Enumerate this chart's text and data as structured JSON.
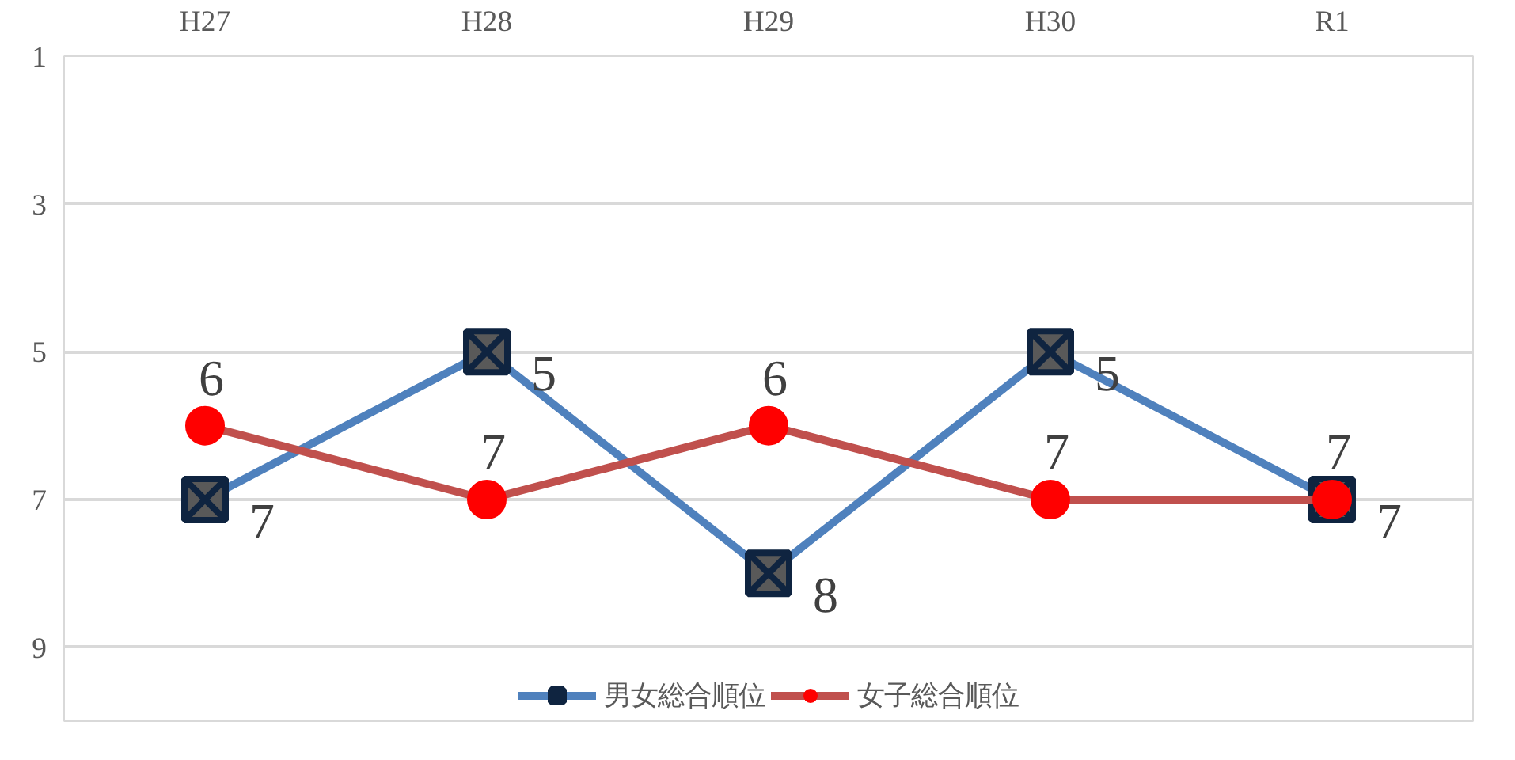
{
  "chart_data": {
    "type": "line",
    "categories": [
      "H27",
      "H28",
      "H29",
      "H30",
      "R1"
    ],
    "series": [
      {
        "name": "男女総合順位",
        "color": "#4f81bd",
        "marker": "square",
        "values": [
          7,
          5,
          8,
          5,
          7
        ]
      },
      {
        "name": "女子総合順位",
        "color": "#c0504d",
        "marker": "circle",
        "values": [
          6,
          7,
          6,
          7,
          7
        ]
      }
    ],
    "ylim": [
      10,
      1
    ],
    "yticks": [
      1,
      3,
      5,
      7,
      9
    ],
    "grid": "y",
    "legend": "bottom",
    "data_labels": true
  }
}
